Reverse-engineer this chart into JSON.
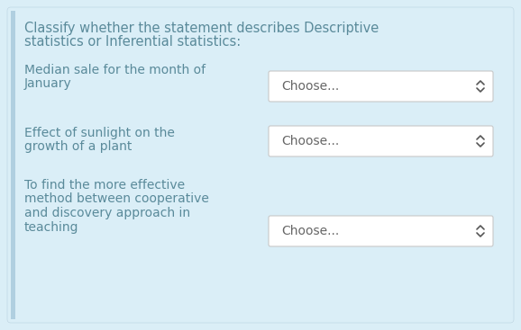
{
  "background_color": "#daeef7",
  "outer_bg": "#daeef7",
  "card_color": "#daeef7",
  "title_line1": "Classify whether the statement describes Descriptive",
  "title_line2": "statistics or Inferential statistics:",
  "title_color": "#5a8a9a",
  "rows": [
    {
      "label_lines": [
        "Median sale for the month of",
        "January"
      ],
      "dropdown_text": "Choose..."
    },
    {
      "label_lines": [
        "Effect of sunlight on the",
        "growth of a plant"
      ],
      "dropdown_text": "Choose..."
    },
    {
      "label_lines": [
        "To find the more effective",
        "method between cooperative",
        "and discovery approach in",
        "teaching"
      ],
      "dropdown_text": "Choose..."
    }
  ],
  "label_color": "#5a8a9a",
  "dropdown_bg": "#ffffff",
  "dropdown_border": "#c8c8c8",
  "dropdown_text_color": "#666666",
  "arrow_color": "#555555",
  "title_fontsize": 10.5,
  "label_fontsize": 10,
  "dropdown_fontsize": 10,
  "left_bar_color": "#b0cfe0"
}
